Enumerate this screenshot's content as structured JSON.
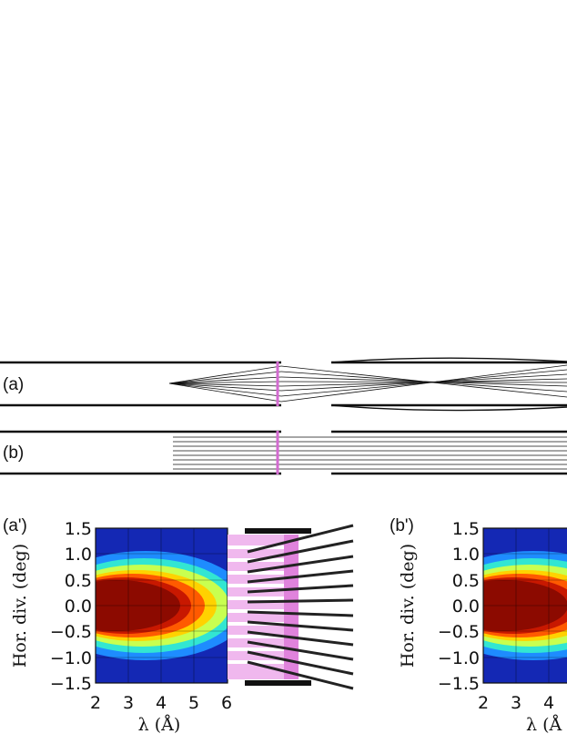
{
  "panels": {
    "a": {
      "label": "(a)"
    },
    "b": {
      "label": "(b)"
    },
    "a_prime": {
      "label": "(a')"
    },
    "b_prime": {
      "label": "(b')"
    }
  },
  "plot": {
    "ylabel": "Hor. div. (deg)",
    "xlabel": "λ (Å)",
    "xlabel_cut": "λ (Å",
    "x_ticks": [
      "2",
      "3",
      "4",
      "5",
      "6"
    ],
    "x_ticks_right": [
      "2",
      "3",
      "4"
    ],
    "y_ticks": [
      "1.5",
      "1.0",
      "0.5",
      "0.0",
      "−0.5",
      "−1.0",
      "−1.5"
    ]
  },
  "chart_data": {
    "type": "heatmap",
    "x_range": [
      2,
      6
    ],
    "y_range": [
      -1.5,
      1.5
    ],
    "colormap": "jet",
    "colors": {
      "low": "#1428b4",
      "high": "#8c0a00",
      "insert": "#e679e0",
      "guide": "#111111"
    }
  }
}
